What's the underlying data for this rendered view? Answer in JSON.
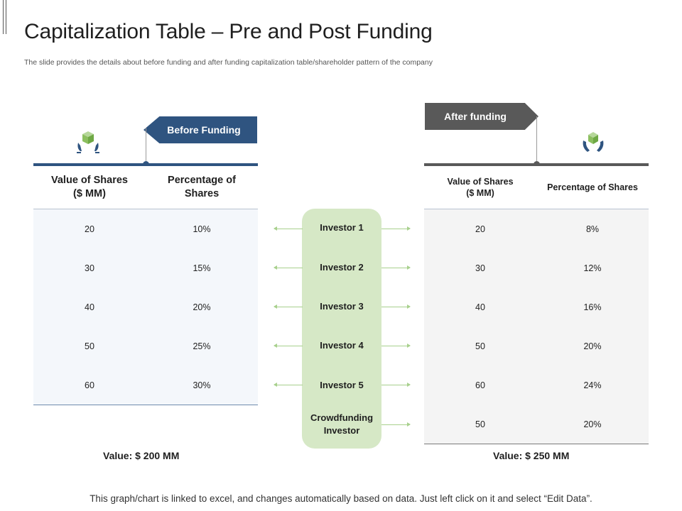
{
  "header": {
    "title": "Capitalization Table – Pre and Post Funding",
    "subtitle": "The slide provides the details about before funding and after funding capitalization table/shareholder pattern of the company"
  },
  "before": {
    "label": "Before Funding",
    "icon": "hands-box-icon",
    "accent": "#2f5480",
    "columns": [
      "Value of Shares\n($ MM)",
      "Percentage of\nShares"
    ],
    "rows": [
      [
        "20",
        "10%"
      ],
      [
        "30",
        "15%"
      ],
      [
        "40",
        "20%"
      ],
      [
        "50",
        "25%"
      ],
      [
        "60",
        "30%"
      ]
    ],
    "total": "Value: $ 200 MM"
  },
  "after": {
    "label": "After funding",
    "icon": "hands-box-icon",
    "accent": "#595959",
    "columns": [
      "Value of Shares\n($ MM)",
      "Percentage of Shares"
    ],
    "rows": [
      [
        "20",
        "8%"
      ],
      [
        "30",
        "12%"
      ],
      [
        "40",
        "16%"
      ],
      [
        "50",
        "20%"
      ],
      [
        "60",
        "24%"
      ],
      [
        "50",
        "20%"
      ]
    ],
    "total": "Value: $ 250 MM"
  },
  "investors": [
    "Investor 1",
    "Investor 2",
    "Investor 3",
    "Investor 4",
    "Investor 5",
    "Crowdfunding\nInvestor"
  ],
  "footer": "This graph/chart is linked to excel, and changes automatically based on data. Just left click on it and select “Edit Data”."
}
